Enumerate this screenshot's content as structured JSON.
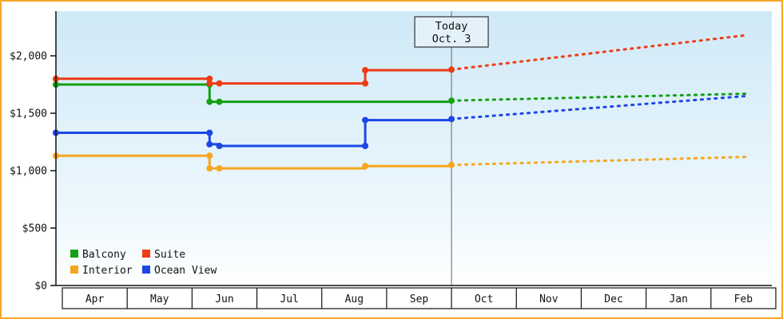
{
  "window": {
    "border_color": "#f5a828",
    "background_color": "#ffffff"
  },
  "chart_data": {
    "type": "line",
    "title": "",
    "xlabel": "",
    "ylabel": "",
    "months": [
      "Apr",
      "May",
      "Jun",
      "Jul",
      "Aug",
      "Sep",
      "Oct",
      "Nov",
      "Dec",
      "Jan",
      "Feb"
    ],
    "y_ticks": [
      {
        "label": "$0",
        "value": 0
      },
      {
        "label": "$500",
        "value": 500
      },
      {
        "label": "$1,000",
        "value": 1000
      },
      {
        "label": "$1,500",
        "value": 1500
      },
      {
        "label": "$2,000",
        "value": 2000
      }
    ],
    "ylim": [
      0,
      2400
    ],
    "grid": false,
    "plot_gradient": {
      "top": "#cfe9f7",
      "mid": "#eef8fd",
      "bottom": "#ffffff"
    },
    "today": {
      "label_line1": "Today",
      "label_line2": "Oct. 3",
      "x_month": 6.0
    },
    "forecast_style": "dotted",
    "series": [
      {
        "name": "Interior",
        "color": "#f6a61f",
        "solid": [
          [
            -0.1,
            1130
          ],
          [
            2.27,
            1130
          ],
          [
            2.27,
            1020
          ],
          [
            4.67,
            1020
          ],
          [
            4.67,
            1040
          ],
          [
            6,
            1040
          ],
          [
            6,
            1050
          ]
        ],
        "markers": [
          [
            -0.1,
            1130
          ],
          [
            2.27,
            1130
          ],
          [
            2.27,
            1020
          ],
          [
            2.42,
            1020
          ],
          [
            4.67,
            1040
          ],
          [
            6,
            1050
          ]
        ],
        "dashed": [
          [
            6,
            1050
          ],
          [
            10.55,
            1120
          ]
        ]
      },
      {
        "name": "Ocean View",
        "color": "#1c46e6",
        "solid": [
          [
            -0.1,
            1330
          ],
          [
            2.27,
            1330
          ],
          [
            2.27,
            1230
          ],
          [
            2.42,
            1230
          ],
          [
            2.42,
            1215
          ],
          [
            4.67,
            1215
          ],
          [
            4.67,
            1440
          ],
          [
            6,
            1440
          ],
          [
            6,
            1450
          ]
        ],
        "markers": [
          [
            -0.1,
            1330
          ],
          [
            2.27,
            1330
          ],
          [
            2.27,
            1230
          ],
          [
            2.42,
            1215
          ],
          [
            4.67,
            1215
          ],
          [
            4.67,
            1440
          ],
          [
            6,
            1450
          ]
        ],
        "dashed": [
          [
            6,
            1450
          ],
          [
            10.55,
            1650
          ]
        ]
      },
      {
        "name": "Balcony",
        "color": "#14a014",
        "solid": [
          [
            -0.1,
            1750
          ],
          [
            2.27,
            1750
          ],
          [
            2.27,
            1600
          ],
          [
            6,
            1600
          ],
          [
            6,
            1610
          ]
        ],
        "markers": [
          [
            -0.1,
            1750
          ],
          [
            2.27,
            1750
          ],
          [
            2.27,
            1600
          ],
          [
            2.42,
            1600
          ],
          [
            6,
            1610
          ]
        ],
        "dashed": [
          [
            6,
            1610
          ],
          [
            10.55,
            1670
          ]
        ]
      },
      {
        "name": "Suite",
        "color": "#ee3b14",
        "solid": [
          [
            -0.1,
            1800
          ],
          [
            2.27,
            1800
          ],
          [
            2.27,
            1760
          ],
          [
            4.67,
            1760
          ],
          [
            4.67,
            1875
          ],
          [
            6,
            1875
          ],
          [
            6,
            1880
          ]
        ],
        "markers": [
          [
            -0.1,
            1800
          ],
          [
            2.27,
            1800
          ],
          [
            2.27,
            1760
          ],
          [
            2.42,
            1760
          ],
          [
            4.67,
            1760
          ],
          [
            4.67,
            1875
          ],
          [
            6,
            1880
          ]
        ],
        "dashed": [
          [
            6,
            1880
          ],
          [
            10.55,
            2180
          ]
        ]
      }
    ],
    "legend": {
      "position": "bottom-left-inside",
      "rows": [
        [
          "Balcony",
          "Suite"
        ],
        [
          "Interior",
          "Ocean View"
        ]
      ]
    }
  }
}
